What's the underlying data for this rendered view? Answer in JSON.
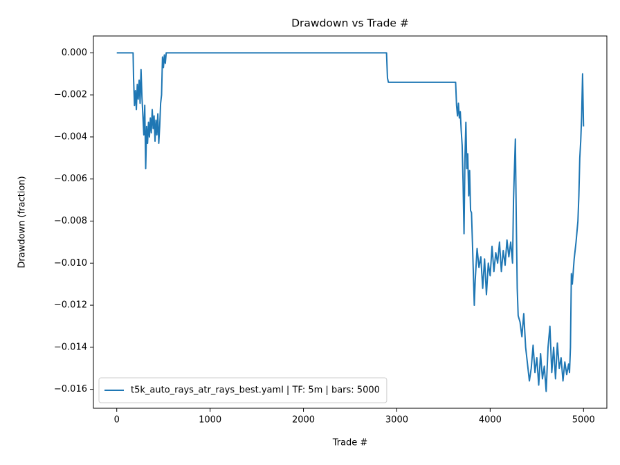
{
  "chart_data": {
    "type": "line",
    "title": "Drawdown vs Trade #",
    "xlabel": "Trade #",
    "ylabel": "Drawdown (fraction)",
    "legend": "lower left",
    "xlim": [
      -250,
      5250
    ],
    "ylim": [
      -0.0169,
      0.0008
    ],
    "xticks": [
      0,
      1000,
      2000,
      3000,
      4000,
      5000
    ],
    "yticks": [
      {
        "value": 0,
        "label": "0.000"
      },
      {
        "value": -0.002,
        "label": "−0.002"
      },
      {
        "value": -0.004,
        "label": "−0.004"
      },
      {
        "value": -0.006,
        "label": "−0.006"
      },
      {
        "value": -0.008,
        "label": "−0.008"
      },
      {
        "value": -0.01,
        "label": "−0.010"
      },
      {
        "value": -0.012,
        "label": "−0.012"
      },
      {
        "value": -0.014,
        "label": "−0.014"
      },
      {
        "value": -0.016,
        "label": "−0.016"
      }
    ],
    "x": [
      0,
      175,
      180,
      190,
      200,
      210,
      220,
      230,
      240,
      250,
      260,
      270,
      280,
      290,
      300,
      310,
      320,
      330,
      340,
      350,
      360,
      370,
      380,
      390,
      400,
      410,
      420,
      430,
      440,
      450,
      460,
      470,
      480,
      490,
      500,
      510,
      520,
      530,
      540,
      2890,
      2900,
      2910,
      3630,
      3640,
      3650,
      3660,
      3670,
      3680,
      3690,
      3700,
      3710,
      3720,
      3730,
      3740,
      3750,
      3760,
      3770,
      3780,
      3790,
      3800,
      3810,
      3820,
      3830,
      3840,
      3860,
      3880,
      3900,
      3920,
      3940,
      3960,
      3980,
      4000,
      4020,
      4040,
      4060,
      4080,
      4100,
      4120,
      4140,
      4160,
      4180,
      4200,
      4220,
      4240,
      4250,
      4260,
      4270,
      4280,
      4290,
      4300,
      4320,
      4340,
      4360,
      4380,
      4400,
      4420,
      4440,
      4460,
      4480,
      4500,
      4520,
      4540,
      4560,
      4580,
      4600,
      4620,
      4640,
      4660,
      4680,
      4700,
      4720,
      4740,
      4760,
      4780,
      4800,
      4820,
      4840,
      4850,
      4860,
      4870,
      4880,
      4900,
      4920,
      4940,
      4950,
      4960,
      4970,
      4980,
      4990,
      5000
    ],
    "series": [
      {
        "name": "t5k_auto_rays_atr_rays_best.yaml | TF: 5m | bars: 5000",
        "color": "#1f77b4",
        "values": [
          0,
          0,
          -0.0012,
          -0.0025,
          -0.0018,
          -0.0027,
          -0.0015,
          -0.0022,
          -0.0013,
          -0.0024,
          -0.0008,
          -0.0021,
          -0.003,
          -0.0039,
          -0.0025,
          -0.0055,
          -0.0035,
          -0.0043,
          -0.0033,
          -0.004,
          -0.0031,
          -0.0038,
          -0.0027,
          -0.0036,
          -0.003,
          -0.0042,
          -0.0032,
          -0.0039,
          -0.0029,
          -0.0043,
          -0.0035,
          -0.0024,
          -0.002,
          -0.0002,
          -0.0007,
          -0.0001,
          -0.0005,
          0,
          0,
          0,
          -0.0012,
          -0.0014,
          -0.0014,
          -0.0025,
          -0.003,
          -0.0024,
          -0.0031,
          -0.0028,
          -0.0037,
          -0.0044,
          -0.0062,
          -0.0086,
          -0.005,
          -0.0033,
          -0.0055,
          -0.0048,
          -0.0068,
          -0.0056,
          -0.0075,
          -0.0076,
          -0.009,
          -0.0105,
          -0.012,
          -0.0108,
          -0.0093,
          -0.0102,
          -0.0097,
          -0.0112,
          -0.0098,
          -0.0115,
          -0.01,
          -0.0106,
          -0.0092,
          -0.0104,
          -0.0095,
          -0.01,
          -0.009,
          -0.0104,
          -0.0094,
          -0.0101,
          -0.0089,
          -0.0097,
          -0.009,
          -0.01,
          -0.007,
          -0.0055,
          -0.0041,
          -0.008,
          -0.0112,
          -0.0125,
          -0.0128,
          -0.0135,
          -0.0124,
          -0.014,
          -0.0148,
          -0.0156,
          -0.015,
          -0.0139,
          -0.0152,
          -0.0145,
          -0.0158,
          -0.0143,
          -0.0155,
          -0.0149,
          -0.0161,
          -0.014,
          -0.013,
          -0.0152,
          -0.014,
          -0.0155,
          -0.0138,
          -0.015,
          -0.0145,
          -0.0156,
          -0.0147,
          -0.0153,
          -0.0148,
          -0.0152,
          -0.014,
          -0.0105,
          -0.011,
          -0.0098,
          -0.009,
          -0.008,
          -0.0068,
          -0.005,
          -0.0042,
          -0.003,
          -0.001,
          -0.0035
        ]
      }
    ]
  }
}
